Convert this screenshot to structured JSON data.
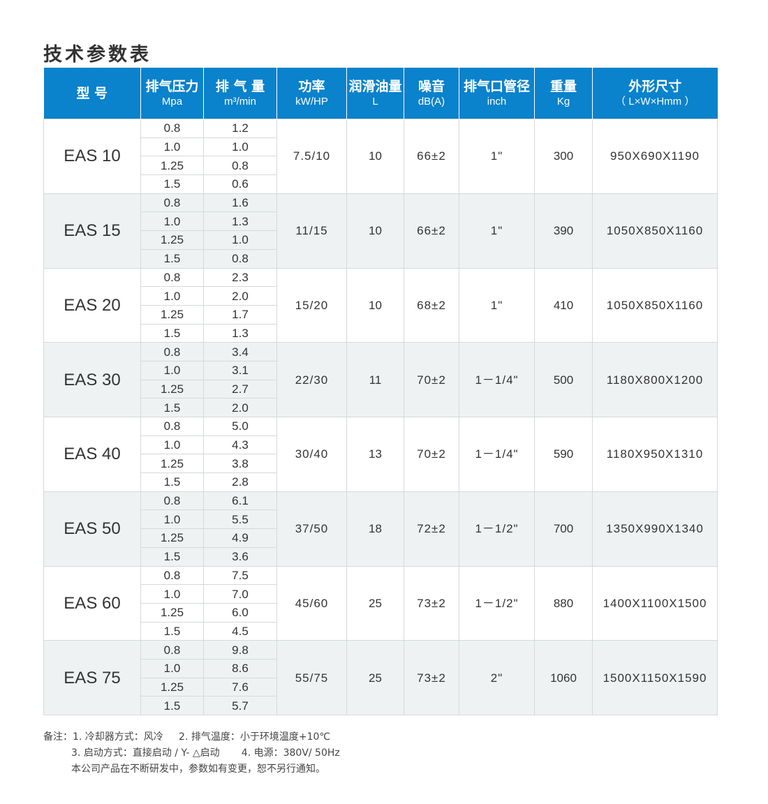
{
  "title": "技术参数表",
  "headers": [
    {
      "cn": "型  号",
      "en": ""
    },
    {
      "cn": "排气压力",
      "en": "Mpa"
    },
    {
      "cn": "排 气 量",
      "en": "m³/min"
    },
    {
      "cn": "功率",
      "en": "kW/HP"
    },
    {
      "cn": "润滑油量",
      "en": "L"
    },
    {
      "cn": "噪音",
      "en": "dB(A)"
    },
    {
      "cn": "排气口管径",
      "en": "inch"
    },
    {
      "cn": "重量",
      "en": "Kg"
    },
    {
      "cn": "外形尺寸",
      "en": "（ L×W×Hmm ）"
    }
  ],
  "models": [
    {
      "model": "EAS 10",
      "pressure": [
        "0.8",
        "1.0",
        "1.25",
        "1.5"
      ],
      "flow": [
        "1.2",
        "1.0",
        "0.8",
        "0.6"
      ],
      "power": "7.5/10",
      "oil": "10",
      "noise": "66±2",
      "outlet": "1\"",
      "weight": "300",
      "dims": "950X690X1190"
    },
    {
      "model": "EAS 15",
      "pressure": [
        "0.8",
        "1.0",
        "1.25",
        "1.5"
      ],
      "flow": [
        "1.6",
        "1.3",
        "1.0",
        "0.8"
      ],
      "power": "11/15",
      "oil": "10",
      "noise": "66±2",
      "outlet": "1\"",
      "weight": "390",
      "dims": "1050X850X1160"
    },
    {
      "model": "EAS 20",
      "pressure": [
        "0.8",
        "1.0",
        "1.25",
        "1.5"
      ],
      "flow": [
        "2.3",
        "2.0",
        "1.7",
        "1.3"
      ],
      "power": "15/20",
      "oil": "10",
      "noise": "68±2",
      "outlet": "1\"",
      "weight": "410",
      "dims": "1050X850X1160"
    },
    {
      "model": "EAS 30",
      "pressure": [
        "0.8",
        "1.0",
        "1.25",
        "1.5"
      ],
      "flow": [
        "3.4",
        "3.1",
        "2.7",
        "2.0"
      ],
      "power": "22/30",
      "oil": "11",
      "noise": "70±2",
      "outlet": "1－1/4\"",
      "weight": "500",
      "dims": "1180X800X1200"
    },
    {
      "model": "EAS 40",
      "pressure": [
        "0.8",
        "1.0",
        "1.25",
        "1.5"
      ],
      "flow": [
        "5.0",
        "4.3",
        "3.8",
        "2.8"
      ],
      "power": "30/40",
      "oil": "13",
      "noise": "70±2",
      "outlet": "1－1/4\"",
      "weight": "590",
      "dims": "1180X950X1310"
    },
    {
      "model": "EAS 50",
      "pressure": [
        "0.8",
        "1.0",
        "1.25",
        "1.5"
      ],
      "flow": [
        "6.1",
        "5.5",
        "4.9",
        "3.6"
      ],
      "power": "37/50",
      "oil": "18",
      "noise": "72±2",
      "outlet": "1－1/2\"",
      "weight": "700",
      "dims": "1350X990X1340"
    },
    {
      "model": "EAS 60",
      "pressure": [
        "0.8",
        "1.0",
        "1.25",
        "1.5"
      ],
      "flow": [
        "7.5",
        "7.0",
        "6.0",
        "4.5"
      ],
      "power": "45/60",
      "oil": "25",
      "noise": "73±2",
      "outlet": "1－1/2\"",
      "weight": "880",
      "dims": "1400X1100X1500"
    },
    {
      "model": "EAS 75",
      "pressure": [
        "0.8",
        "1.0",
        "1.25",
        "1.5"
      ],
      "flow": [
        "9.8",
        "8.6",
        "7.6",
        "5.7"
      ],
      "power": "55/75",
      "oil": "25",
      "noise": "73±2",
      "outlet": "2\"",
      "weight": "1060",
      "dims": "1500X1150X1590"
    }
  ],
  "notes": [
    "备注：1. 冷却器方式：风冷     2. 排气温度：小于环境温度+10℃",
    "         3. 启动方式：直接启动 / Y- △启动       4. 电源：380V/ 50Hz",
    "         本公司产品在不断研发中，参数如有变更，恕不另行通知。"
  ],
  "colors": {
    "header_bg": "#0a82cc",
    "shade_row": "#eef2f3",
    "grid": "#d4d9da"
  }
}
